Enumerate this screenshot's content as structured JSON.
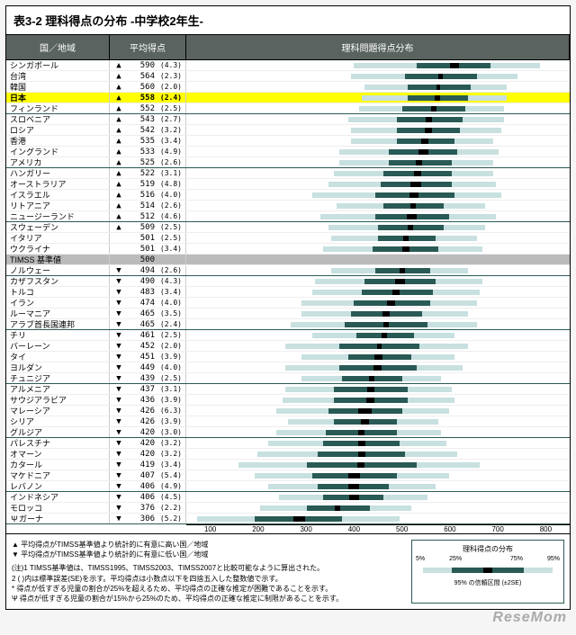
{
  "title": "表3-2 理科得点の分布 -中学校2年生-",
  "headers": {
    "country": "国／地域",
    "score": "平均得点",
    "chart": "理科問題得点分布"
  },
  "chart": {
    "xmin": 100,
    "xmax": 800,
    "ticks": [
      100,
      200,
      300,
      400,
      500,
      600,
      700,
      800
    ],
    "bar_outer_color": "#c8e0e0",
    "bar_inner_color": "#2a5a55",
    "bar_ci_color": "#000000",
    "highlight_color": "#ffff00",
    "baseline_bg": "#bbbbbb",
    "header_bg": "#5a6360"
  },
  "rows": [
    {
      "country": "シンガポール",
      "sym": "▲",
      "score": 590,
      "se": 4.3,
      "p5": 405,
      "p25": 520,
      "p75": 655,
      "p95": 745,
      "group_end": false
    },
    {
      "country": "台湾",
      "sym": "▲",
      "score": 564,
      "se": 2.3,
      "p5": 400,
      "p25": 500,
      "p75": 630,
      "p95": 705,
      "group_end": false
    },
    {
      "country": "韓国",
      "sym": "▲",
      "score": 560,
      "se": 2.0,
      "p5": 425,
      "p25": 505,
      "p75": 620,
      "p95": 685,
      "group_end": false
    },
    {
      "country": "日本",
      "sym": "▲",
      "score": 558,
      "se": 2.4,
      "p5": 420,
      "p25": 505,
      "p75": 615,
      "p95": 685,
      "highlight": true,
      "bold": true,
      "group_end": false
    },
    {
      "country": "フィンランド",
      "sym": "▲",
      "score": 552,
      "se": 2.5,
      "p5": 415,
      "p25": 495,
      "p75": 610,
      "p95": 680,
      "group_end": true
    },
    {
      "country": "スロベニア",
      "sym": "▲",
      "score": 543,
      "se": 2.7,
      "p5": 395,
      "p25": 485,
      "p75": 605,
      "p95": 680,
      "group_end": false
    },
    {
      "country": "ロシア",
      "sym": "▲",
      "score": 542,
      "se": 3.2,
      "p5": 400,
      "p25": 485,
      "p75": 600,
      "p95": 675,
      "group_end": false
    },
    {
      "country": "香港",
      "sym": "▲",
      "score": 535,
      "se": 3.4,
      "p5": 400,
      "p25": 485,
      "p75": 590,
      "p95": 660,
      "group_end": false
    },
    {
      "country": "イングランド",
      "sym": "▲",
      "score": 533,
      "se": 4.9,
      "p5": 380,
      "p25": 470,
      "p75": 595,
      "p95": 670,
      "group_end": false
    },
    {
      "country": "アメリカ",
      "sym": "▲",
      "score": 525,
      "se": 2.6,
      "p5": 380,
      "p25": 470,
      "p75": 585,
      "p95": 660,
      "group_end": true
    },
    {
      "country": "ハンガリー",
      "sym": "▲",
      "score": 522,
      "se": 3.1,
      "p5": 370,
      "p25": 460,
      "p75": 585,
      "p95": 660,
      "group_end": false
    },
    {
      "country": "オーストラリア",
      "sym": "▲",
      "score": 519,
      "se": 4.8,
      "p5": 360,
      "p25": 455,
      "p75": 585,
      "p95": 665,
      "group_end": false
    },
    {
      "country": "イスラエル",
      "sym": "▲",
      "score": 516,
      "se": 4.0,
      "p5": 330,
      "p25": 445,
      "p75": 590,
      "p95": 675,
      "group_end": false
    },
    {
      "country": "リトアニア",
      "sym": "▲",
      "score": 514,
      "se": 2.6,
      "p5": 375,
      "p25": 460,
      "p75": 570,
      "p95": 645,
      "group_end": false
    },
    {
      "country": "ニュージーランド",
      "sym": "▲",
      "score": 512,
      "se": 4.6,
      "p5": 345,
      "p25": 445,
      "p75": 580,
      "p95": 665,
      "group_end": true
    },
    {
      "country": "スウェーデン",
      "sym": "▲",
      "score": 509,
      "se": 2.5,
      "p5": 360,
      "p25": 450,
      "p75": 570,
      "p95": 645,
      "group_end": false
    },
    {
      "country": "イタリア",
      "sym": "",
      "score": 501,
      "se": 2.5,
      "p5": 365,
      "p25": 450,
      "p75": 555,
      "p95": 630,
      "group_end": false
    },
    {
      "country": "ウクライナ",
      "sym": "",
      "score": 501,
      "se": 3.4,
      "p5": 350,
      "p25": 440,
      "p75": 560,
      "p95": 640,
      "group_end": false
    },
    {
      "country": "TIMSS 基準値",
      "sym": "",
      "score": 500,
      "se": null,
      "baseline": true,
      "group_end": false
    },
    {
      "country": "ノルウェー",
      "sym": "▼",
      "score": 494,
      "se": 2.6,
      "p5": 365,
      "p25": 445,
      "p75": 545,
      "p95": 615,
      "group_end": true
    },
    {
      "country": "カザフスタン",
      "sym": "▼",
      "score": 490,
      "se": 4.3,
      "p5": 335,
      "p25": 425,
      "p75": 555,
      "p95": 640,
      "group_end": false
    },
    {
      "country": "トルコ",
      "sym": "▼",
      "score": 483,
      "se": 3.4,
      "p5": 330,
      "p25": 420,
      "p75": 550,
      "p95": 635,
      "group_end": false
    },
    {
      "country": "イラン",
      "sym": "▼",
      "score": 474,
      "se": 4.0,
      "p5": 310,
      "p25": 405,
      "p75": 545,
      "p95": 630,
      "group_end": false
    },
    {
      "country": "ルーマニア",
      "sym": "▼",
      "score": 465,
      "se": 3.5,
      "p5": 310,
      "p25": 400,
      "p75": 530,
      "p95": 615,
      "group_end": false
    },
    {
      "country": "アラブ首長国連邦",
      "sym": "▼",
      "score": 465,
      "se": 2.4,
      "p5": 290,
      "p25": 390,
      "p75": 540,
      "p95": 630,
      "group_end": true
    },
    {
      "country": "チリ",
      "sym": "▼",
      "score": 461,
      "se": 2.5,
      "p5": 330,
      "p25": 410,
      "p75": 515,
      "p95": 590,
      "group_end": false
    },
    {
      "country": "バーレーン",
      "sym": "▼",
      "score": 452,
      "se": 2.0,
      "p5": 280,
      "p25": 380,
      "p75": 525,
      "p95": 615,
      "group_end": false
    },
    {
      "country": "タイ",
      "sym": "▼",
      "score": 451,
      "se": 3.9,
      "p5": 310,
      "p25": 395,
      "p75": 510,
      "p95": 590,
      "group_end": false
    },
    {
      "country": "ヨルダン",
      "sym": "▼",
      "score": 449,
      "se": 4.0,
      "p5": 280,
      "p25": 380,
      "p75": 520,
      "p95": 605,
      "group_end": false
    },
    {
      "country": "チュニジア",
      "sym": "▼",
      "score": 439,
      "se": 2.5,
      "p5": 310,
      "p25": 385,
      "p75": 495,
      "p95": 565,
      "group_end": true
    },
    {
      "country": "アルメニア",
      "sym": "▼",
      "score": 437,
      "se": 3.1,
      "p5": 280,
      "p25": 370,
      "p75": 505,
      "p95": 585,
      "group_end": false
    },
    {
      "country": "サウジアラビア",
      "sym": "▼",
      "score": 436,
      "se": 3.9,
      "p5": 275,
      "p25": 370,
      "p75": 505,
      "p95": 590,
      "group_end": false
    },
    {
      "country": "マレーシア",
      "sym": "▼",
      "score": 426,
      "se": 6.3,
      "p5": 265,
      "p25": 360,
      "p75": 495,
      "p95": 580,
      "group_end": false
    },
    {
      "country": "シリア",
      "sym": "▼",
      "score": 426,
      "se": 3.9,
      "p5": 285,
      "p25": 370,
      "p75": 485,
      "p95": 560,
      "group_end": false
    },
    {
      "country": "グルジア",
      "sym": "▼",
      "score": 420,
      "se": 3.0,
      "p5": 265,
      "p25": 355,
      "p75": 485,
      "p95": 565,
      "group_end": true
    },
    {
      "country": "パレスチナ",
      "sym": "▼",
      "score": 420,
      "se": 3.2,
      "p5": 250,
      "p25": 350,
      "p75": 490,
      "p95": 575,
      "group_end": false
    },
    {
      "country": "オマーン",
      "sym": "▼",
      "score": 420,
      "se": 3.2,
      "p5": 230,
      "p25": 340,
      "p75": 500,
      "p95": 595,
      "group_end": false
    },
    {
      "country": "カタール",
      "sym": "▼",
      "score": 419,
      "se": 3.4,
      "p5": 195,
      "p25": 320,
      "p75": 520,
      "p95": 635,
      "group_end": false
    },
    {
      "country": "マケドニア",
      "sym": "▼",
      "score": 407,
      "se": 5.4,
      "p5": 225,
      "p25": 330,
      "p75": 485,
      "p95": 580,
      "group_end": false
    },
    {
      "country": "レバノン",
      "sym": "▼",
      "score": 406,
      "se": 4.9,
      "p5": 250,
      "p25": 340,
      "p75": 470,
      "p95": 555,
      "group_end": true
    },
    {
      "country": "インドネシア",
      "sym": "▼",
      "score": 406,
      "se": 4.5,
      "p5": 270,
      "p25": 350,
      "p75": 460,
      "p95": 540,
      "group_end": false
    },
    {
      "country": "モロッコ",
      "sym": "▼",
      "score": 376,
      "se": 2.2,
      "p5": 235,
      "p25": 320,
      "p75": 435,
      "p95": 510,
      "group_end": false
    },
    {
      "country": "ガーナ",
      "sym": "▼",
      "score": 306,
      "se": 5.2,
      "p5": 120,
      "p25": 225,
      "p75": 385,
      "p95": 490,
      "psi": true,
      "group_end": true
    }
  ],
  "notes": {
    "sym_up": "▲ 平均得点がTIMSS基準値より統計的に有意に高い国／地域",
    "sym_down": "▼ 平均得点がTIMSS基準値より統計的に有意に低い国／地域",
    "n1": "(注)1 TIMSS基準値は、TIMSS1995、TIMSS2003、TIMSS2007と比較可能なように算出された。",
    "n2": "2 ( )内は標準誤差(SE)を示す。平均得点は小数点以下を四捨五入した整数値で示す。",
    "n3": "* 得点が低すぎる児童の割合が25%を超えるため、平均得点の正確な推定が困難であることを示す。",
    "n4": "Ψ 得点が低すぎる児童の割合が15%から25%のため、平均得点の正確な推定に制限があることを示す。"
  },
  "legend": {
    "title": "理科得点の分布",
    "p5": "5%",
    "p25": "25%",
    "p75": "75%",
    "p95": "95%",
    "ci": "95% の信頼区間 (±2SE)"
  },
  "watermark": "ReseMom"
}
